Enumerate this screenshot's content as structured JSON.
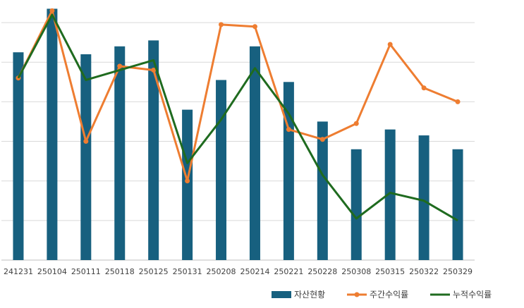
{
  "chart_data": {
    "type": "bar+line",
    "title": "",
    "xlabel": "",
    "ylabel": "",
    "categories": [
      "241231",
      "250104",
      "250111",
      "250118",
      "250125",
      "250131",
      "250208",
      "250214",
      "250221",
      "250228",
      "250308",
      "250315",
      "250322",
      "250329"
    ],
    "bar_axis": {
      "range": [
        0,
        6.5
      ],
      "grid": true,
      "tick_labels_visible": false
    },
    "line_axis": {
      "range": [
        0,
        6.5
      ],
      "tick_labels_visible": false
    },
    "series": [
      {
        "name": "자산현황",
        "type": "bar",
        "color": "#17607f",
        "values": [
          5.25,
          6.35,
          5.2,
          5.4,
          5.55,
          3.8,
          4.55,
          5.4,
          4.5,
          3.5,
          2.8,
          3.3,
          3.15,
          2.8
        ]
      },
      {
        "name": "주간수익률",
        "type": "line",
        "color": "#ee7d31",
        "values": [
          4.6,
          6.3,
          3.0,
          4.9,
          4.8,
          2.0,
          5.95,
          5.9,
          3.3,
          3.05,
          3.45,
          5.45,
          4.35,
          4.0
        ]
      },
      {
        "name": "누적수익률",
        "type": "line",
        "color": "#1f6b1f",
        "values": [
          4.6,
          6.2,
          4.55,
          4.8,
          5.05,
          2.45,
          3.55,
          4.85,
          3.7,
          2.15,
          1.05,
          1.7,
          1.5,
          1.0
        ]
      }
    ],
    "legend": "bottom-right"
  }
}
